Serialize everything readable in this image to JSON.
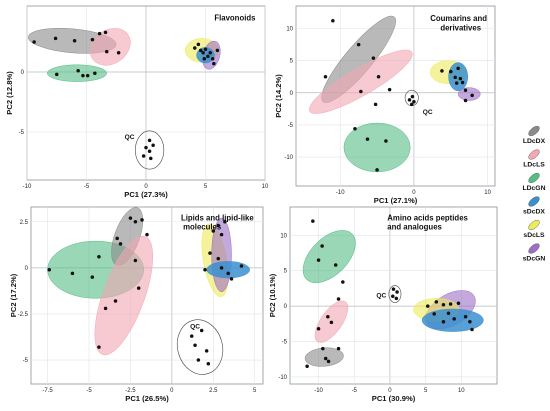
{
  "colors": {
    "LDcDX": "#8a8a8a",
    "LDcLS": "#f2a7b3",
    "LDcGN": "#55bd85",
    "sDcDX": "#3b8fcf",
    "sDcLS": "#eeea5a",
    "sDcGN": "#9d6fc4"
  },
  "legend": {
    "items": [
      {
        "group": "LDcDX",
        "label": "LDcDX"
      },
      {
        "group": "LDcLS",
        "label": "LDcLS"
      },
      {
        "group": "LDcGN",
        "label": "LDcGN"
      },
      {
        "group": "sDcDX",
        "label": "sDcDX"
      },
      {
        "group": "sDcLS",
        "label": "sDcLS"
      },
      {
        "group": "sDcGN",
        "label": "sDcGN"
      }
    ]
  },
  "chart_data": [
    {
      "type": "scatter",
      "title": "Flavonoids",
      "xlabel": "PC1 (27.3%)",
      "ylabel": "PC2 (12.8%)",
      "xlim": [
        -10,
        10
      ],
      "ylim": [
        -9,
        5.5
      ],
      "xticks": [
        -10,
        -5,
        0,
        5,
        10
      ],
      "yticks": [
        -5,
        0
      ],
      "qc_label": "QC",
      "ellipses": [
        {
          "group": "LDcDX",
          "cx": -6.2,
          "cy": 2.6,
          "rx": 3.7,
          "ry": 1.0,
          "angle": 5
        },
        {
          "group": "LDcLS",
          "cx": -3.0,
          "cy": 2.1,
          "rx": 1.8,
          "ry": 1.4,
          "angle": -35
        },
        {
          "group": "LDcGN",
          "cx": -5.8,
          "cy": -0.1,
          "rx": 2.5,
          "ry": 0.7,
          "angle": 0
        },
        {
          "group": "sDcLS",
          "cx": 4.7,
          "cy": 1.8,
          "rx": 1.4,
          "ry": 1.0,
          "angle": 0
        },
        {
          "group": "sDcGN",
          "cx": 5.5,
          "cy": 1.4,
          "rx": 0.7,
          "ry": 1.2,
          "angle": 15
        },
        {
          "group": "sDcDX",
          "cx": 5.0,
          "cy": 1.4,
          "rx": 0.75,
          "ry": 0.65,
          "angle": 0
        },
        {
          "group": "QC",
          "cx": 0.3,
          "cy": -6.5,
          "rx": 1.2,
          "ry": 1.6,
          "angle": 0
        }
      ],
      "points": [
        [
          -9.4,
          2.5
        ],
        [
          -7.6,
          2.8
        ],
        [
          -6.0,
          2.6
        ],
        [
          -4.5,
          2.7
        ],
        [
          -3.9,
          3.2
        ],
        [
          -3.3,
          1.7
        ],
        [
          -2.3,
          1.6
        ],
        [
          -3.4,
          3.3
        ],
        [
          -7.5,
          -0.2
        ],
        [
          -5.7,
          0.1
        ],
        [
          -5.3,
          -0.3
        ],
        [
          -4.9,
          -0.3
        ],
        [
          -4.3,
          -0.1
        ],
        [
          4.1,
          2.0
        ],
        [
          4.4,
          2.3
        ],
        [
          4.6,
          1.8
        ],
        [
          4.8,
          1.6
        ],
        [
          5.0,
          1.9
        ],
        [
          5.2,
          1.3
        ],
        [
          5.4,
          1.6
        ],
        [
          5.6,
          1.1
        ],
        [
          4.9,
          1.1
        ],
        [
          6.0,
          1.8
        ],
        [
          5.7,
          0.7
        ],
        [
          0.3,
          -5.7
        ],
        [
          0.6,
          -6.1
        ],
        [
          0.0,
          -6.3
        ],
        [
          0.3,
          -6.6
        ],
        [
          -0.2,
          -7.0
        ],
        [
          0.4,
          -7.2
        ]
      ]
    },
    {
      "type": "scatter",
      "title": "Coumarins and derivatives",
      "xlabel": "PC1 (27.1%)",
      "ylabel": "PC2 (14.2%)",
      "xlim": [
        -16,
        11
      ],
      "ylim": [
        -14.5,
        13.5
      ],
      "xticks": [
        -10,
        0,
        10
      ],
      "yticks": [
        -10,
        -5,
        0,
        5,
        10
      ],
      "qc_label": "QC",
      "ellipses": [
        {
          "group": "LDcDX",
          "cx": -7.5,
          "cy": 5.2,
          "rx": 7.5,
          "ry": 2.1,
          "angle": -50
        },
        {
          "group": "LDcLS",
          "cx": -7.2,
          "cy": 1.7,
          "rx": 8.0,
          "ry": 2.1,
          "angle": -30
        },
        {
          "group": "LDcGN",
          "cx": -5.0,
          "cy": -8.5,
          "rx": 4.5,
          "ry": 3.8,
          "angle": 0
        },
        {
          "group": "sDcLS",
          "cx": 4.7,
          "cy": 3.2,
          "rx": 2.5,
          "ry": 1.8,
          "angle": 0
        },
        {
          "group": "sDcDX",
          "cx": 6.0,
          "cy": 2.5,
          "rx": 1.3,
          "ry": 2.2,
          "angle": 0
        },
        {
          "group": "sDcGN",
          "cx": 7.5,
          "cy": -0.2,
          "rx": 1.5,
          "ry": 1.0,
          "angle": 0
        },
        {
          "group": "QC",
          "cx": -0.3,
          "cy": -0.8,
          "rx": 0.9,
          "ry": 1.2,
          "angle": 0
        }
      ],
      "points": [
        [
          -11.0,
          11.2
        ],
        [
          -7.5,
          7.5
        ],
        [
          -5.5,
          5.4
        ],
        [
          -4.8,
          2.5
        ],
        [
          -3.3,
          0.5
        ],
        [
          -12.0,
          2.5
        ],
        [
          -7.2,
          0.2
        ],
        [
          -5.2,
          -1.8
        ],
        [
          -8.0,
          -5.6
        ],
        [
          -6.3,
          -7.2
        ],
        [
          -3.8,
          -7.5
        ],
        [
          -5.0,
          -12.0
        ],
        [
          3.8,
          3.4
        ],
        [
          5.0,
          3.3
        ],
        [
          5.6,
          2.4
        ],
        [
          6.0,
          3.8
        ],
        [
          6.3,
          2.2
        ],
        [
          6.6,
          1.6
        ],
        [
          5.8,
          1.5
        ],
        [
          7.0,
          0.4
        ],
        [
          7.9,
          -0.4
        ],
        [
          7.0,
          -1.2
        ],
        [
          -0.2,
          -0.6
        ],
        [
          -0.6,
          -1.1
        ],
        [
          0.0,
          -1.4
        ],
        [
          -0.3,
          -1.8
        ]
      ]
    },
    {
      "type": "scatter",
      "title": "Lipids and lipid-like molecules",
      "xlabel": "PC1 (26.5%)",
      "ylabel": "PC2 (17.2%)",
      "xlim": [
        -8.5,
        5.5
      ],
      "ylim": [
        -6.3,
        3.3
      ],
      "xticks": [
        -7.5,
        -5.0,
        -2.5,
        0.0,
        2.5,
        5.0
      ],
      "yticks": [
        -5.0,
        -2.5,
        0.0,
        2.5
      ],
      "qc_label": "QC",
      "ellipses": [
        {
          "group": "LDcGN",
          "cx": -4.6,
          "cy": -0.1,
          "rx": 2.9,
          "ry": 1.55,
          "angle": 0
        },
        {
          "group": "LDcDX",
          "cx": -2.7,
          "cy": 1.7,
          "rx": 0.75,
          "ry": 1.65,
          "angle": 20
        },
        {
          "group": "LDcLS",
          "cx": -2.9,
          "cy": -1.5,
          "rx": 1.25,
          "ry": 3.4,
          "angle": 20
        },
        {
          "group": "sDcLS",
          "cx": 2.6,
          "cy": 0.4,
          "rx": 0.7,
          "ry": 2.0,
          "angle": -10
        },
        {
          "group": "sDcGN",
          "cx": 3.0,
          "cy": 0.7,
          "rx": 0.6,
          "ry": 2.0,
          "angle": 0
        },
        {
          "group": "sDcDX",
          "cx": 3.4,
          "cy": -0.1,
          "rx": 1.3,
          "ry": 0.45,
          "angle": 0
        },
        {
          "group": "QC",
          "cx": 1.7,
          "cy": -4.3,
          "rx": 1.35,
          "ry": 1.5,
          "angle": -15
        }
      ],
      "points": [
        [
          -7.4,
          -0.1
        ],
        [
          -6.0,
          -0.3
        ],
        [
          -4.8,
          -0.5
        ],
        [
          -4.4,
          0.6
        ],
        [
          -2.5,
          2.7
        ],
        [
          -2.2,
          2.5
        ],
        [
          -1.8,
          2.6
        ],
        [
          -3.3,
          1.6
        ],
        [
          -3.1,
          1.3
        ],
        [
          -2.2,
          0.4
        ],
        [
          -3.4,
          -1.8
        ],
        [
          -4.0,
          -2.2
        ],
        [
          -2.0,
          -1.1
        ],
        [
          -4.4,
          -4.3
        ],
        [
          -1.5,
          1.8
        ],
        [
          2.5,
          2.0
        ],
        [
          2.8,
          2.3
        ],
        [
          3.0,
          1.8
        ],
        [
          3.2,
          2.5
        ],
        [
          2.3,
          0.8
        ],
        [
          2.8,
          0.5
        ],
        [
          3.0,
          0.0
        ],
        [
          3.4,
          -0.3
        ],
        [
          3.6,
          -0.6
        ],
        [
          2.0,
          -0.1
        ],
        [
          4.2,
          0.1
        ],
        [
          1.2,
          -3.7
        ],
        [
          1.8,
          -3.4
        ],
        [
          1.4,
          -4.2
        ],
        [
          2.1,
          -4.5
        ],
        [
          1.6,
          -5.0
        ],
        [
          2.2,
          -5.2
        ]
      ]
    },
    {
      "type": "scatter",
      "title": "Amino acids peptides and analogues",
      "xlabel": "PC1 (30.9%)",
      "ylabel": "PC2 (10.1%)",
      "xlim": [
        -14,
        15
      ],
      "ylim": [
        -11,
        14
      ],
      "xticks": [
        -10,
        -5,
        0,
        5,
        10
      ],
      "yticks": [
        -10,
        -5,
        0,
        5,
        10
      ],
      "qc_label": "QC",
      "ellipses": [
        {
          "group": "LDcGN",
          "cx": -8.5,
          "cy": 7.0,
          "rx": 4.5,
          "ry": 2.6,
          "angle": -45
        },
        {
          "group": "LDcLS",
          "cx": -8.2,
          "cy": -2.2,
          "rx": 3.4,
          "ry": 1.5,
          "angle": -55
        },
        {
          "group": "LDcDX",
          "cx": -9.2,
          "cy": -7.2,
          "rx": 2.7,
          "ry": 1.3,
          "angle": -5
        },
        {
          "group": "sDcGN",
          "cx": 8.5,
          "cy": -0.5,
          "rx": 3.8,
          "ry": 2.2,
          "angle": -30
        },
        {
          "group": "sDcLS",
          "cx": 6.5,
          "cy": -0.5,
          "rx": 3.2,
          "ry": 1.6,
          "angle": 0
        },
        {
          "group": "sDcDX",
          "cx": 8.8,
          "cy": -2.0,
          "rx": 4.3,
          "ry": 1.6,
          "angle": 0
        },
        {
          "group": "QC",
          "cx": 0.7,
          "cy": 1.7,
          "rx": 0.85,
          "ry": 1.2,
          "angle": 0
        }
      ],
      "points": [
        [
          -10.8,
          12.0
        ],
        [
          -9.5,
          8.5
        ],
        [
          -10.0,
          6.5
        ],
        [
          -7.6,
          5.8
        ],
        [
          -6.6,
          3.4
        ],
        [
          -7.2,
          1.0
        ],
        [
          -8.7,
          -1.5
        ],
        [
          -10.0,
          -3.2
        ],
        [
          -8.2,
          -2.3
        ],
        [
          -11.6,
          -8.5
        ],
        [
          -9.4,
          -6.0
        ],
        [
          -9.0,
          -7.4
        ],
        [
          -8.6,
          -7.8
        ],
        [
          -7.2,
          -6.0
        ],
        [
          5.3,
          0.0
        ],
        [
          6.5,
          0.6
        ],
        [
          7.5,
          0.2
        ],
        [
          8.5,
          0.3
        ],
        [
          8.2,
          -1.0
        ],
        [
          9.6,
          0.4
        ],
        [
          6.2,
          -1.1
        ],
        [
          7.5,
          -2.2
        ],
        [
          9.0,
          -1.8
        ],
        [
          10.6,
          -1.5
        ],
        [
          11.2,
          -2.2
        ],
        [
          11.5,
          -3.3
        ],
        [
          0.5,
          2.4
        ],
        [
          1.0,
          2.0
        ],
        [
          0.4,
          1.4
        ],
        [
          0.9,
          1.1
        ]
      ]
    }
  ]
}
